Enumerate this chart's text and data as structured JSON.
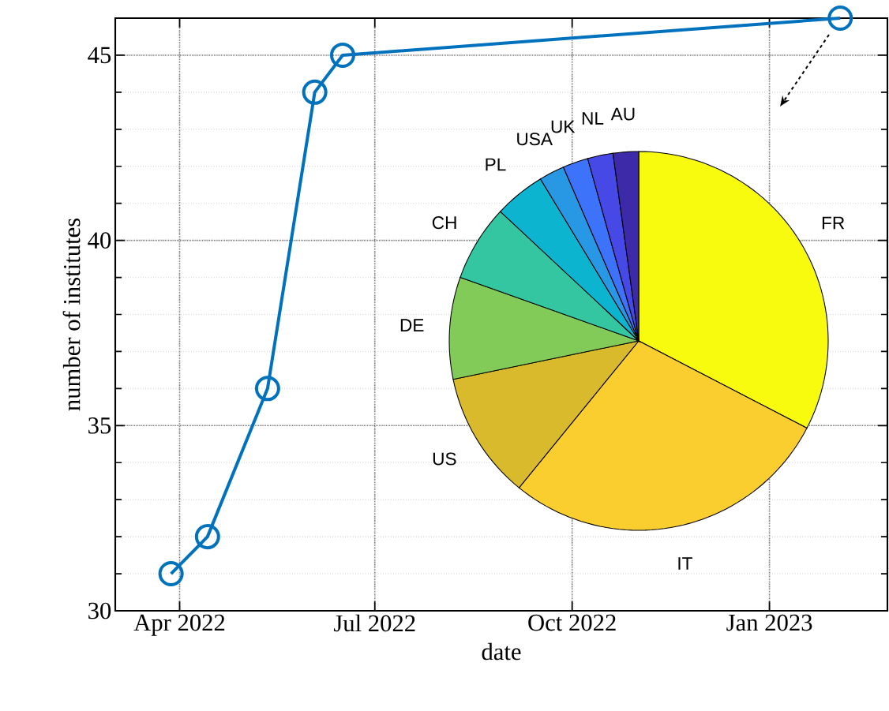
{
  "chart_data": [
    {
      "type": "line",
      "xlabel": "date",
      "ylabel": "number of institutes",
      "x": [
        "2022-03-28",
        "2022-04-14",
        "2022-05-12",
        "2022-06-03",
        "2022-06-16",
        "2023-02-03"
      ],
      "series": [
        {
          "color": "#0072bd",
          "values": [
            31,
            32,
            36,
            44,
            45,
            46
          ]
        }
      ],
      "xlim": [
        "2022-03-02",
        "2023-02-25"
      ],
      "xticks": [
        {
          "value": "2022-04-01",
          "label": "Apr 2022"
        },
        {
          "value": "2022-07-01",
          "label": "Jul 2022"
        },
        {
          "value": "2022-10-01",
          "label": "Oct 2022"
        },
        {
          "value": "2023-01-01",
          "label": "Jan 2023"
        }
      ],
      "ylim": [
        30,
        46
      ],
      "yticks": [
        30,
        {
          "value": 31,
          "label": null
        },
        {
          "value": 32,
          "label": null
        },
        {
          "value": 33,
          "label": null
        },
        {
          "value": 34,
          "label": null
        },
        35,
        {
          "value": 36,
          "label": null
        },
        {
          "value": 37,
          "label": null
        },
        {
          "value": 38,
          "label": null
        },
        {
          "value": 39,
          "label": null
        },
        40,
        {
          "value": 41,
          "label": null
        },
        {
          "value": 42,
          "label": null
        },
        {
          "value": 43,
          "label": null
        },
        {
          "value": 44,
          "label": null
        },
        45
      ],
      "grid": true,
      "marker": "circle",
      "line_style": "solid"
    },
    {
      "type": "pie",
      "categories": [
        "FR",
        "IT",
        "US",
        "DE",
        "CH",
        "PL",
        "USA",
        "UK",
        "NL",
        "AU"
      ],
      "values": [
        32.62,
        28.26,
        10.87,
        8.7,
        6.52,
        4.35,
        2.17,
        2.17,
        2.17,
        2.17
      ],
      "colors": [
        "#f9fb0e",
        "#fbce30",
        "#d9ba2c",
        "#82cb59",
        "#33c6a0",
        "#0cb4d0",
        "#2898e4",
        "#3d72fa",
        "#4649e6",
        "#3d2aa8"
      ]
    }
  ]
}
